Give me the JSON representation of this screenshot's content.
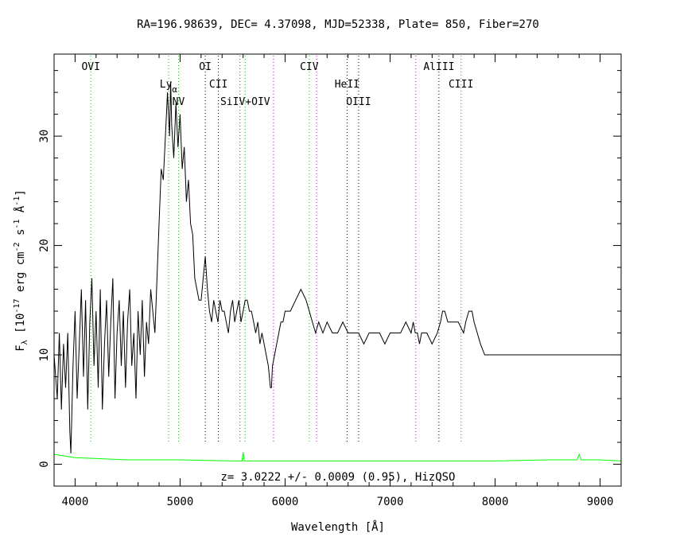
{
  "title": "RA=196.98639, DEC= 4.37098, MJD=52338, Plate= 850, Fiber=270",
  "redshift_label": "z= 3.0222 +/- 0.0009 (0.95), HizQSO",
  "colors": {
    "spectrum": "#000000",
    "error": "#00ff00",
    "green_lines": "#00cc00",
    "magenta_lines": "#cc00cc",
    "black_lines": "#000000"
  },
  "chart_data": {
    "type": "line",
    "title": "RA=196.98639, DEC= 4.37098, MJD=52338, Plate= 850, Fiber=270",
    "xlabel": "Wavelength [Å]",
    "ylabel": "F_λ [10^-17 erg cm^-2 s^-1 Å^-1]",
    "xlim": [
      3800,
      9200
    ],
    "ylim": [
      -2,
      37.5
    ],
    "x_ticks": [
      4000,
      5000,
      6000,
      7000,
      8000,
      9000
    ],
    "y_ticks": [
      0,
      10,
      20,
      30
    ],
    "grid": false,
    "series": [
      {
        "role": "flux",
        "x": [
          3800,
          3830,
          3850,
          3870,
          3890,
          3910,
          3930,
          3950,
          3960,
          3980,
          4000,
          4020,
          4040,
          4060,
          4080,
          4100,
          4120,
          4140,
          4160,
          4180,
          4200,
          4220,
          4240,
          4260,
          4280,
          4300,
          4320,
          4340,
          4360,
          4380,
          4400,
          4420,
          4440,
          4460,
          4480,
          4500,
          4520,
          4540,
          4560,
          4580,
          4600,
          4620,
          4640,
          4660,
          4680,
          4700,
          4720,
          4740,
          4760,
          4780,
          4800,
          4820,
          4840,
          4860,
          4880,
          4900,
          4910,
          4920,
          4940,
          4960,
          4980,
          5000,
          5020,
          5040,
          5060,
          5080,
          5100,
          5120,
          5140,
          5160,
          5180,
          5200,
          5220,
          5240,
          5260,
          5280,
          5300,
          5320,
          5340,
          5360,
          5380,
          5400,
          5420,
          5440,
          5460,
          5480,
          5500,
          5520,
          5540,
          5560,
          5580,
          5600,
          5620,
          5640,
          5660,
          5680,
          5700,
          5720,
          5740,
          5760,
          5780,
          5800,
          5820,
          5840,
          5860,
          5870,
          5880,
          5900,
          5920,
          5940,
          5960,
          5980,
          6000,
          6050,
          6100,
          6150,
          6200,
          6230,
          6260,
          6290,
          6320,
          6360,
          6400,
          6450,
          6500,
          6550,
          6600,
          6650,
          6700,
          6750,
          6800,
          6850,
          6900,
          6950,
          7000,
          7050,
          7100,
          7150,
          7200,
          7220,
          7240,
          7260,
          7280,
          7300,
          7350,
          7400,
          7450,
          7480,
          7500,
          7520,
          7550,
          7600,
          7650,
          7700,
          7720,
          7750,
          7780,
          7800,
          7830,
          7860,
          7900,
          7950,
          8000,
          8050,
          8100,
          8150,
          8200,
          8250,
          8300,
          8350,
          8400,
          8450,
          8500,
          8550,
          8600,
          8650,
          8700,
          8750,
          8800,
          8850,
          8900,
          8950,
          9000,
          9050,
          9100,
          9150,
          9200
        ],
        "y": [
          10,
          6,
          12,
          5,
          11,
          7,
          12,
          3,
          1,
          9,
          14,
          6,
          11,
          16,
          8,
          15,
          5,
          13,
          17,
          9,
          14,
          7,
          16,
          5,
          11,
          15,
          8,
          13,
          17,
          6,
          12,
          15,
          9,
          14,
          7,
          13,
          16,
          9,
          12,
          6,
          14,
          10,
          15,
          8,
          13,
          11,
          16,
          14,
          12,
          17,
          22,
          27,
          26,
          30,
          34,
          30,
          35,
          31,
          28,
          33,
          29,
          32,
          27,
          29,
          24,
          26,
          22,
          21,
          17,
          16,
          15,
          15,
          17,
          19,
          16,
          14,
          13,
          15,
          14,
          13,
          15,
          14,
          14,
          13,
          12,
          14,
          15,
          13,
          14,
          15,
          13,
          14,
          15,
          15,
          14,
          14,
          13,
          12,
          13,
          11,
          12,
          11,
          10,
          9,
          7,
          7,
          9,
          10,
          11,
          12,
          13,
          13,
          14,
          14,
          15,
          16,
          15,
          14,
          13,
          12,
          13,
          12,
          13,
          12,
          12,
          13,
          12,
          12,
          12,
          11,
          12,
          12,
          12,
          11,
          12,
          12,
          12,
          13,
          12,
          13,
          12,
          12,
          11,
          12,
          12,
          11,
          12,
          13,
          14,
          14,
          13,
          13,
          13,
          12,
          13,
          14,
          14,
          13,
          12,
          11,
          10,
          10,
          10,
          10,
          10,
          10,
          10,
          10,
          10,
          10,
          10,
          10,
          10,
          10,
          10,
          10,
          10,
          10,
          10,
          10,
          10,
          10,
          10,
          10,
          10,
          10,
          10
        ]
      },
      {
        "role": "error",
        "x": [
          3800,
          4000,
          4500,
          5000,
          5500,
          5590,
          5600,
          5610,
          6000,
          6500,
          7000,
          7500,
          8000,
          8500,
          8780,
          8800,
          8820,
          9000,
          9200
        ],
        "y": [
          0.9,
          0.6,
          0.4,
          0.4,
          0.3,
          0.3,
          1.1,
          0.3,
          0.3,
          0.3,
          0.3,
          0.3,
          0.3,
          0.4,
          0.4,
          0.9,
          0.4,
          0.4,
          0.3
        ]
      }
    ],
    "emission_lines": [
      {
        "label": "OVI",
        "wavelength": 4150,
        "color": "green",
        "text_level": 1
      },
      {
        "label": "Ly",
        "subscript": "α",
        "wavelength": 4890,
        "color": "green",
        "text_level": 2
      },
      {
        "label": "NV",
        "wavelength": 4985,
        "color": "green",
        "text_level": 3
      },
      {
        "label": "OI",
        "wavelength": 5240,
        "color": "black",
        "text_level": 1
      },
      {
        "label": "CII",
        "wavelength": 5365,
        "color": "black",
        "text_level": 2
      },
      {
        "label": "",
        "wavelength": 5570,
        "color": "magenta",
        "text_level": 0
      },
      {
        "label": "SiIV+OIV",
        "wavelength": 5620,
        "color": "green",
        "text_level": 3
      },
      {
        "label": "",
        "wavelength": 5890,
        "color": "magenta",
        "text_level": 0
      },
      {
        "label": "CIV",
        "wavelength": 6230,
        "color": "green",
        "text_level": 1
      },
      {
        "label": "",
        "wavelength": 6300,
        "color": "magenta",
        "text_level": 0
      },
      {
        "label": "HeII",
        "wavelength": 6590,
        "color": "black",
        "text_level": 2
      },
      {
        "label": "OIII",
        "wavelength": 6700,
        "color": "black",
        "text_level": 3
      },
      {
        "label": "",
        "wavelength": 7245,
        "color": "magenta",
        "text_level": 0
      },
      {
        "label": "AlIII",
        "wavelength": 7465,
        "color": "black",
        "text_level": 1
      },
      {
        "label": "CIII",
        "wavelength": 7675,
        "color": "green",
        "text_level": 2
      }
    ]
  }
}
